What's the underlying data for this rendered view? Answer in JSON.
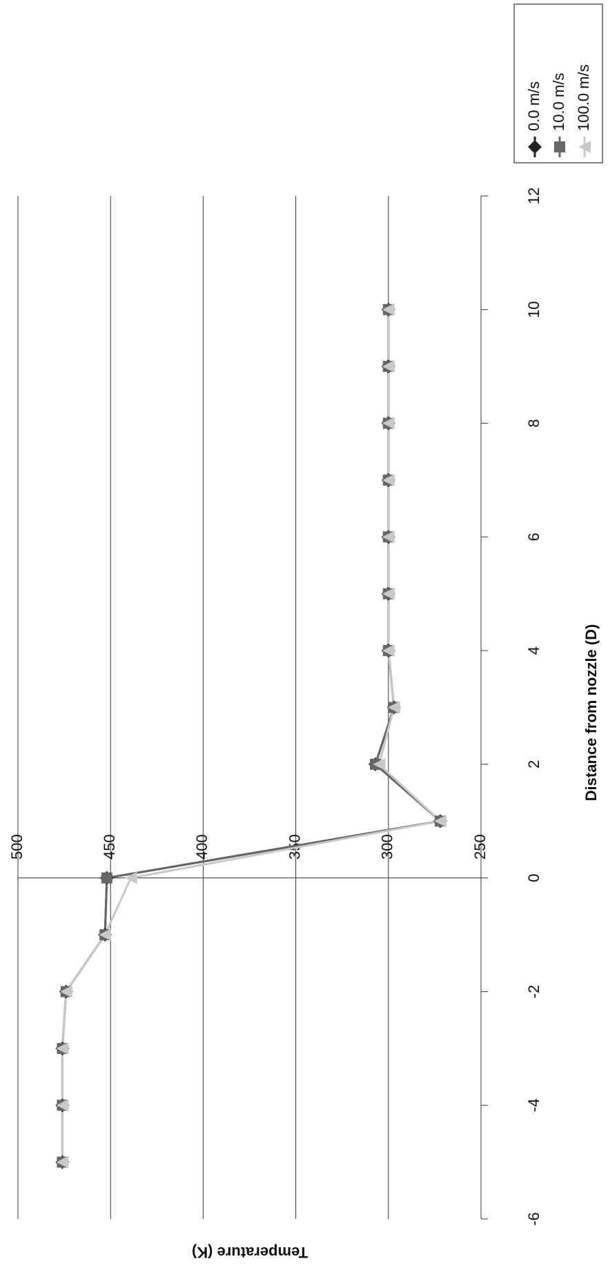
{
  "chart_data": {
    "type": "line",
    "x_label": "Distance from nozzle (D)",
    "y_label": "Temperature (K)",
    "x": [
      -5,
      -4,
      -3,
      -2,
      -1,
      0,
      1,
      2,
      3,
      4,
      5,
      6,
      7,
      8,
      9,
      10
    ],
    "series": [
      {
        "name": "0.0 m/s",
        "color": "#222222",
        "marker": "diamond",
        "values": [
          476,
          476,
          476,
          474,
          453,
          452,
          272,
          307,
          297,
          300,
          300,
          300,
          300,
          300,
          300,
          300
        ]
      },
      {
        "name": "10.0 m/s",
        "color": "#666666",
        "marker": "square",
        "values": [
          476,
          476,
          476,
          474,
          453,
          452,
          272,
          307,
          297,
          300,
          300,
          300,
          300,
          300,
          300,
          300
        ]
      },
      {
        "name": "100.0 m/s",
        "color": "#c8c8c8",
        "marker": "triangle",
        "values": [
          476,
          476,
          476,
          474,
          453,
          439,
          272,
          305,
          297,
          300,
          300,
          300,
          300,
          300,
          300,
          300
        ]
      }
    ],
    "xlim": [
      -6,
      12
    ],
    "xticks": [
      -6,
      -4,
      -2,
      0,
      2,
      4,
      6,
      8,
      10,
      12
    ],
    "ylim": [
      250,
      500
    ],
    "yticks": [
      250,
      300,
      350,
      400,
      450,
      500
    ],
    "grid": true,
    "legend": "top-right"
  }
}
